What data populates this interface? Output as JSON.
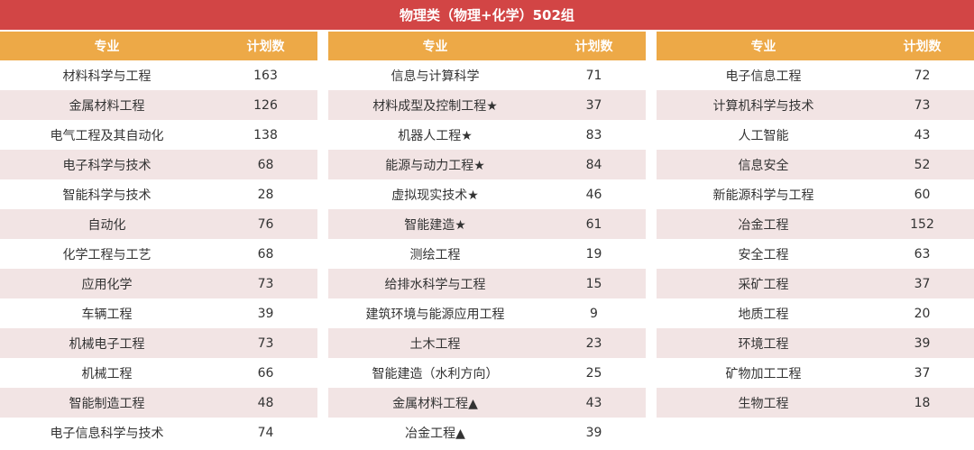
{
  "title": "物理类（物理+化学）502组",
  "header": {
    "major": "专业",
    "plan": "计划数"
  },
  "groups": [
    {
      "rows": [
        {
          "major": "材料科学与工程",
          "plan": "163"
        },
        {
          "major": "金属材料工程",
          "plan": "126"
        },
        {
          "major": "电气工程及其自动化",
          "plan": "138"
        },
        {
          "major": "电子科学与技术",
          "plan": "68"
        },
        {
          "major": "智能科学与技术",
          "plan": "28"
        },
        {
          "major": "自动化",
          "plan": "76"
        },
        {
          "major": "化学工程与工艺",
          "plan": "68"
        },
        {
          "major": "应用化学",
          "plan": "73"
        },
        {
          "major": "车辆工程",
          "plan": "39"
        },
        {
          "major": "机械电子工程",
          "plan": "73"
        },
        {
          "major": "机械工程",
          "plan": "66"
        },
        {
          "major": "智能制造工程",
          "plan": "48"
        },
        {
          "major": "电子信息科学与技术",
          "plan": "74"
        }
      ]
    },
    {
      "rows": [
        {
          "major": "信息与计算科学",
          "plan": "71"
        },
        {
          "major": "材料成型及控制工程★",
          "plan": "37"
        },
        {
          "major": "机器人工程★",
          "plan": "83"
        },
        {
          "major": "能源与动力工程★",
          "plan": "84"
        },
        {
          "major": "虚拟现实技术★",
          "plan": "46"
        },
        {
          "major": "智能建造★",
          "plan": "61"
        },
        {
          "major": "测绘工程",
          "plan": "19"
        },
        {
          "major": "给排水科学与工程",
          "plan": "15"
        },
        {
          "major": "建筑环境与能源应用工程",
          "plan": "9"
        },
        {
          "major": "土木工程",
          "plan": "23"
        },
        {
          "major": "智能建造（水利方向）",
          "plan": "25"
        },
        {
          "major": "金属材料工程▲",
          "plan": "43"
        },
        {
          "major": "冶金工程▲",
          "plan": "39"
        }
      ]
    },
    {
      "rows": [
        {
          "major": "电子信息工程",
          "plan": "72"
        },
        {
          "major": "计算机科学与技术",
          "plan": "73"
        },
        {
          "major": "人工智能",
          "plan": "43"
        },
        {
          "major": "信息安全",
          "plan": "52"
        },
        {
          "major": "新能源科学与工程",
          "plan": "60"
        },
        {
          "major": "冶金工程",
          "plan": "152"
        },
        {
          "major": "安全工程",
          "plan": "63"
        },
        {
          "major": "采矿工程",
          "plan": "37"
        },
        {
          "major": "地质工程",
          "plan": "20"
        },
        {
          "major": "环境工程",
          "plan": "39"
        },
        {
          "major": "矿物加工工程",
          "plan": "37"
        },
        {
          "major": "生物工程",
          "plan": "18"
        }
      ]
    }
  ],
  "colors": {
    "banner": "#d24545",
    "header": "#eda947",
    "alt_row": "#f2e4e4"
  }
}
